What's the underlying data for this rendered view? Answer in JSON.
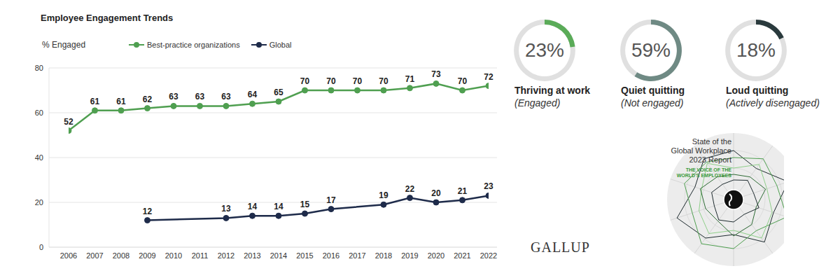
{
  "chart_data": [
    {
      "type": "line",
      "title": "Employee Engagement Trends",
      "y_label": "% Engaged",
      "x": [
        2006,
        2007,
        2008,
        2009,
        2010,
        2011,
        2012,
        2013,
        2014,
        2015,
        2016,
        2017,
        2018,
        2019,
        2020,
        2021,
        2022
      ],
      "xlim": [
        2006,
        2022
      ],
      "xticks": [
        2006,
        2007,
        2008,
        2009,
        2010,
        2011,
        2012,
        2013,
        2014,
        2015,
        2016,
        2017,
        2018,
        2019,
        2020,
        2021,
        2022
      ],
      "ylim": [
        0,
        80
      ],
      "yticks": [
        0,
        20,
        40,
        60,
        80
      ],
      "grid": true,
      "legend": "top",
      "data_labels": true,
      "marker": "circle",
      "series": [
        {
          "name": "Best-practice organizations",
          "color": "#4f9f50",
          "values": [
            52,
            61,
            61,
            62,
            63,
            63,
            63,
            64,
            65,
            70,
            70,
            70,
            70,
            71,
            73,
            70,
            72
          ]
        },
        {
          "name": "Global",
          "color": "#1e2b4a",
          "values": [
            null,
            null,
            null,
            12,
            null,
            null,
            13,
            14,
            14,
            15,
            17,
            null,
            19,
            22,
            20,
            21,
            23
          ]
        }
      ]
    },
    {
      "type": "donut",
      "title": "Thriving at work",
      "subtitle": "(Engaged)",
      "values": [
        23
      ],
      "value_labels": [
        "23%"
      ],
      "ylim": [
        0,
        100
      ],
      "color": "#5aab58"
    },
    {
      "type": "donut",
      "title": "Quiet quitting",
      "subtitle": "(Not engaged)",
      "values": [
        59
      ],
      "value_labels": [
        "59%"
      ],
      "ylim": [
        0,
        100
      ],
      "color": "#6f8a84"
    },
    {
      "type": "donut",
      "title": "Loud quitting",
      "subtitle": "(Actively disengaged)",
      "values": [
        18
      ],
      "value_labels": [
        "18%"
      ],
      "ylim": [
        0,
        100
      ],
      "color": "#2a3a3d"
    }
  ],
  "logo": "GALLUP",
  "report": {
    "title": [
      "State of the",
      "Global Workplace",
      "2023 Report"
    ],
    "subtitle": [
      "THE VOICE OF THE",
      "WORLD'S EMPLOYEES"
    ]
  }
}
